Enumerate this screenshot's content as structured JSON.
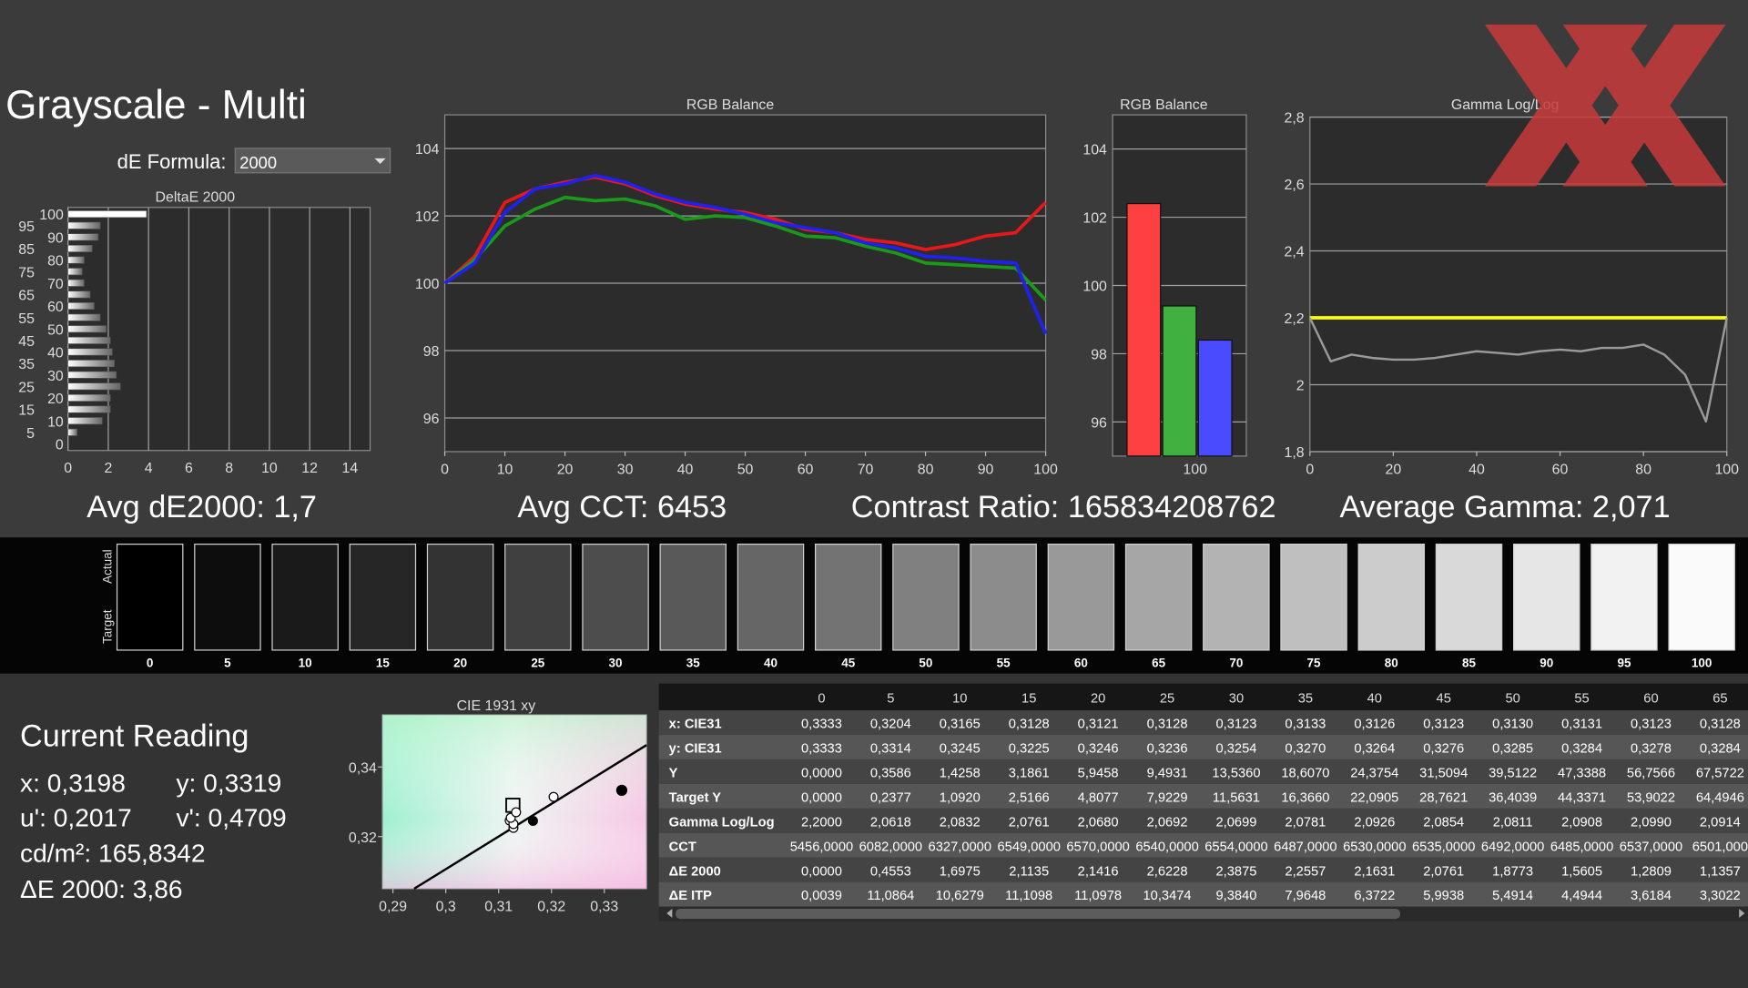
{
  "title": "Grayscale - Multi",
  "de_formula": {
    "label": "dE Formula:",
    "value": "2000"
  },
  "chart_data": [
    {
      "type": "hbar",
      "title": "DeltaE 2000",
      "categories": [
        100,
        95,
        90,
        85,
        80,
        75,
        70,
        65,
        60,
        55,
        50,
        45,
        40,
        35,
        30,
        25,
        20,
        15,
        10,
        5,
        0
      ],
      "values": [
        3.9,
        1.6,
        1.5,
        1.2,
        0.8,
        0.7,
        0.8,
        1.1,
        1.3,
        1.6,
        1.9,
        2.1,
        2.2,
        2.3,
        2.4,
        2.6,
        2.1,
        2.1,
        1.7,
        0.45,
        0
      ],
      "color": "#ffffff",
      "xlim": [
        0,
        15
      ],
      "xticks": [
        0,
        2,
        4,
        6,
        8,
        10,
        12,
        14
      ],
      "grid": true
    },
    {
      "type": "line",
      "title": "RGB Balance",
      "x": [
        0,
        5,
        10,
        15,
        20,
        25,
        30,
        35,
        40,
        45,
        50,
        55,
        60,
        65,
        70,
        75,
        80,
        85,
        90,
        95,
        100
      ],
      "series": [
        {
          "color": "#e81818",
          "values": [
            100,
            100.8,
            102.4,
            102.8,
            103.0,
            103.15,
            102.95,
            102.6,
            102.35,
            102.2,
            102.1,
            101.9,
            101.6,
            101.5,
            101.3,
            101.2,
            101.0,
            101.15,
            101.4,
            101.5,
            102.4
          ]
        },
        {
          "color": "#1a9a1a",
          "values": [
            100,
            100.7,
            101.7,
            102.2,
            102.55,
            102.45,
            102.5,
            102.3,
            101.9,
            102.0,
            101.95,
            101.7,
            101.4,
            101.35,
            101.1,
            100.9,
            100.6,
            100.55,
            100.5,
            100.45,
            99.5
          ]
        },
        {
          "color": "#2020f0",
          "values": [
            100,
            100.6,
            102.1,
            102.8,
            102.95,
            103.2,
            103.0,
            102.65,
            102.4,
            102.25,
            102.05,
            101.8,
            101.65,
            101.5,
            101.2,
            101.05,
            100.8,
            100.75,
            100.65,
            100.6,
            98.5
          ]
        }
      ],
      "xlim": [
        0,
        100
      ],
      "xticks": [
        0,
        10,
        20,
        30,
        40,
        50,
        60,
        70,
        80,
        90,
        100
      ],
      "ylim": [
        95,
        105
      ],
      "yticks": [
        96,
        98,
        100,
        102,
        104
      ],
      "grid": true
    },
    {
      "type": "bar",
      "title": "RGB Balance",
      "categories": [
        100
      ],
      "series": [
        {
          "color": "#ff4040",
          "values": [
            102.4
          ]
        },
        {
          "color": "#40b040",
          "values": [
            99.4
          ]
        },
        {
          "color": "#4a4aff",
          "values": [
            98.4
          ]
        }
      ],
      "ylim": [
        95,
        105
      ],
      "yticks": [
        96,
        98,
        100,
        102,
        104
      ],
      "grid": true
    },
    {
      "type": "line",
      "title": "Gamma Log/Log",
      "x": [
        0,
        5,
        10,
        15,
        20,
        25,
        30,
        35,
        40,
        45,
        50,
        55,
        60,
        65,
        70,
        75,
        80,
        85,
        90,
        95,
        100
      ],
      "series": [
        {
          "color": "#ffff00",
          "values": [
            2.2,
            2.2,
            2.2,
            2.2,
            2.2,
            2.2,
            2.2,
            2.2,
            2.2,
            2.2,
            2.2,
            2.2,
            2.2,
            2.2,
            2.2,
            2.2,
            2.2,
            2.2,
            2.2,
            2.2,
            2.2
          ]
        },
        {
          "color": "#9a9a9a",
          "values": [
            2.2,
            2.07,
            2.09,
            2.08,
            2.075,
            2.075,
            2.08,
            2.09,
            2.1,
            2.095,
            2.09,
            2.1,
            2.105,
            2.1,
            2.11,
            2.11,
            2.12,
            2.09,
            2.03,
            1.89,
            2.2
          ]
        }
      ],
      "xlim": [
        0,
        100
      ],
      "xticks": [
        0,
        20,
        40,
        60,
        80,
        100
      ],
      "ylim": [
        1.8,
        2.8
      ],
      "yticks": [
        {
          "value": 1.8,
          "label": "1,8"
        },
        2,
        {
          "value": 2.2,
          "label": "2,2"
        },
        {
          "value": 2.4,
          "label": "2,4"
        },
        {
          "value": 2.6,
          "label": "2,6"
        },
        {
          "value": 2.8,
          "label": "2,8"
        }
      ],
      "grid": true
    },
    {
      "type": "scatter",
      "title": "CIE 1931 xy",
      "x": [
        0.3333,
        0.3204,
        0.3165,
        0.3128,
        0.3121,
        0.3128,
        0.3123,
        0.3133
      ],
      "values": [
        0.3333,
        0.3314,
        0.3245,
        0.3225,
        0.3246,
        0.3236,
        0.3254,
        0.327
      ],
      "target": {
        "x": 0.3127,
        "y": 0.329
      },
      "locus": {
        "x": [
          0.294,
          0.338
        ],
        "y": [
          0.305,
          0.3463
        ]
      },
      "xlim": [
        0.288,
        0.338
      ],
      "ylim": [
        0.305,
        0.355
      ],
      "xticks": [
        {
          "value": 0.29,
          "label": "0,29"
        },
        {
          "value": 0.3,
          "label": "0,3"
        },
        {
          "value": 0.31,
          "label": "0,31"
        },
        {
          "value": 0.32,
          "label": "0,32"
        },
        {
          "value": 0.33,
          "label": "0,33"
        }
      ],
      "yticks": [
        {
          "value": 0.32,
          "label": "0,32"
        },
        {
          "value": 0.34,
          "label": "0,34"
        }
      ],
      "grid": false
    }
  ],
  "summary": [
    "Avg dE2000: 1,7",
    "Avg CCT: 6453",
    "Contrast Ratio: 165834208762",
    "Average Gamma: 2,071"
  ],
  "swatches": {
    "labels": [
      "Actual",
      "Target"
    ],
    "levels": [
      "0",
      "5",
      "10",
      "15",
      "20",
      "25",
      "30",
      "35",
      "40",
      "45",
      "50",
      "55",
      "60",
      "65",
      "70",
      "75",
      "80",
      "85",
      "90",
      "95",
      "100"
    ],
    "colors": [
      "#000000",
      "#0d0d0d",
      "#1a1a1a",
      "#262626",
      "#333333",
      "#404040",
      "#4d4d4d",
      "#595959",
      "#666666",
      "#737373",
      "#808080",
      "#8c8c8c",
      "#999999",
      "#a6a6a6",
      "#b3b3b3",
      "#bfbfbf",
      "#cccccc",
      "#d9d9d9",
      "#e6e6e6",
      "#f2f2f2",
      "#fafafa"
    ]
  },
  "current_reading": {
    "title": "Current Reading",
    "lines": [
      "x: 0,3198",
      "y: 0,3319",
      "u': 0,2017",
      "v': 0,4709",
      "cd/m²: 165,8342",
      "ΔE 2000: 3,86"
    ]
  },
  "table": {
    "header": [
      "0",
      "5",
      "10",
      "15",
      "20",
      "25",
      "30",
      "35",
      "40",
      "45",
      "50",
      "55",
      "60",
      "65"
    ],
    "rows": [
      [
        "x: CIE31",
        "0,3333",
        "0,3204",
        "0,3165",
        "0,3128",
        "0,3121",
        "0,3128",
        "0,3123",
        "0,3133",
        "0,3126",
        "0,3123",
        "0,3130",
        "0,3131",
        "0,3123",
        "0,3128"
      ],
      [
        "y: CIE31",
        "0,3333",
        "0,3314",
        "0,3245",
        "0,3225",
        "0,3246",
        "0,3236",
        "0,3254",
        "0,3270",
        "0,3264",
        "0,3276",
        "0,3285",
        "0,3284",
        "0,3278",
        "0,3284"
      ],
      [
        "Y",
        "0,0000",
        "0,3586",
        "1,4258",
        "3,1861",
        "5,9458",
        "9,4931",
        "13,5360",
        "18,6070",
        "24,3754",
        "31,5094",
        "39,5122",
        "47,3388",
        "56,7566",
        "67,5722"
      ],
      [
        "Target Y",
        "0,0000",
        "0,2377",
        "1,0920",
        "2,5166",
        "4,8077",
        "7,9229",
        "11,5631",
        "16,3660",
        "22,0905",
        "28,7621",
        "36,4039",
        "44,3371",
        "53,9022",
        "64,4946"
      ],
      [
        "Gamma Log/Log",
        "2,2000",
        "2,0618",
        "2,0832",
        "2,0761",
        "2,0680",
        "2,0692",
        "2,0699",
        "2,0781",
        "2,0926",
        "2,0854",
        "2,0811",
        "2,0908",
        "2,0990",
        "2,0914"
      ],
      [
        "CCT",
        "5456,0000",
        "6082,0000",
        "6327,0000",
        "6549,0000",
        "6570,0000",
        "6540,0000",
        "6554,0000",
        "6487,0000",
        "6530,0000",
        "6535,0000",
        "6492,0000",
        "6485,0000",
        "6537,0000",
        "6501,000"
      ],
      [
        "ΔE 2000",
        "0,0000",
        "0,4553",
        "1,6975",
        "2,1135",
        "2,1416",
        "2,6228",
        "2,3875",
        "2,2557",
        "2,1631",
        "2,0761",
        "1,8773",
        "1,5605",
        "1,2809",
        "1,1357"
      ],
      [
        "ΔE ITP",
        "0,0039",
        "11,0864",
        "10,6279",
        "11,1098",
        "11,0978",
        "10,3474",
        "9,3840",
        "7,9648",
        "6,3722",
        "5,9938",
        "5,4914",
        "4,4944",
        "3,6184",
        "3,3022"
      ]
    ]
  }
}
